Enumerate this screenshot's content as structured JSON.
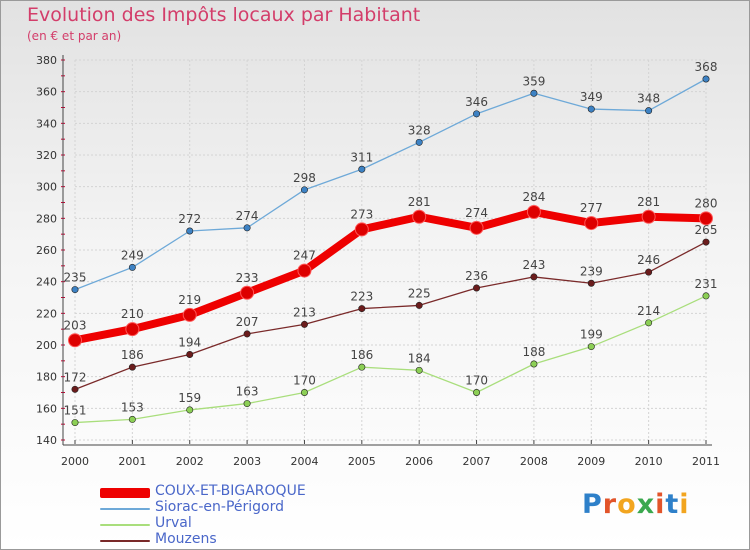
{
  "colors": {
    "title": "#d33d6a",
    "grid": "#d4d4d4",
    "axis": "#444444",
    "tick_red": "#cc0033"
  },
  "header": {
    "title": "Evolution des Impôts locaux par Habitant",
    "subtitle": "(en € et par an)"
  },
  "brand": {
    "letters": [
      {
        "ch": "P",
        "color": "#2e80c9"
      },
      {
        "ch": "r",
        "color": "#e2542a"
      },
      {
        "ch": "o",
        "color": "#f2a51f"
      },
      {
        "ch": "x",
        "color": "#3aa84e"
      },
      {
        "ch": "i",
        "color": "#e2542a"
      },
      {
        "ch": "t",
        "color": "#2e80c9"
      },
      {
        "ch": "i",
        "color": "#f2a51f"
      }
    ]
  },
  "chart_data": {
    "type": "line",
    "title": "Evolution des Impôts locaux par Habitant",
    "subtitle": "(en € et par an)",
    "categories": [
      "2000",
      "2001",
      "2002",
      "2003",
      "2004",
      "2005",
      "2006",
      "2007",
      "2008",
      "2009",
      "2010",
      "2011"
    ],
    "ylim": [
      140,
      380
    ],
    "yticks": [
      140,
      160,
      180,
      200,
      220,
      240,
      260,
      280,
      300,
      320,
      340,
      360,
      380
    ],
    "grid": true,
    "legend_position": "bottom-left",
    "series": [
      {
        "name": "COUX-ET-BIGAROQUE",
        "color": "#ee0000",
        "marker": "#dd0000",
        "thick": true,
        "values": [
          203,
          210,
          219,
          233,
          247,
          273,
          281,
          274,
          284,
          277,
          281,
          280
        ]
      },
      {
        "name": "Siorac-en-Périgord",
        "color": "#6ea9d8",
        "marker": "#3d82c4",
        "thick": false,
        "values": [
          235,
          249,
          272,
          274,
          298,
          311,
          328,
          346,
          359,
          349,
          348,
          368
        ]
      },
      {
        "name": "Urval",
        "color": "#a9de7c",
        "marker": "#8ccf55",
        "thick": false,
        "values": [
          151,
          153,
          159,
          163,
          170,
          186,
          184,
          170,
          188,
          199,
          214,
          231
        ]
      },
      {
        "name": "Mouzens",
        "color": "#7a2a2a",
        "marker": "#6b1c1c",
        "thick": false,
        "values": [
          172,
          186,
          194,
          207,
          213,
          223,
          225,
          236,
          243,
          239,
          246,
          265
        ]
      }
    ]
  }
}
